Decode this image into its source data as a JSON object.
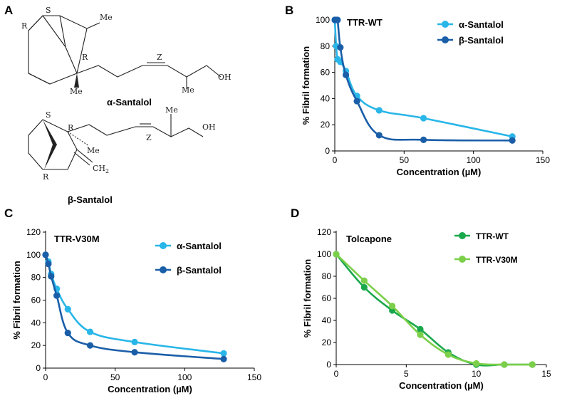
{
  "colors": {
    "alpha": "#29b6e8",
    "beta": "#1a5ea8",
    "tttrwt_tolcapone": "#1aa84c",
    "ttrv30m_tolcapone": "#7ccf4a",
    "axis": "#000000"
  },
  "panels": {
    "A": {
      "letter": "A"
    },
    "B": {
      "letter": "B"
    },
    "C": {
      "letter": "C"
    },
    "D": {
      "letter": "D"
    }
  },
  "structures": {
    "alpha": {
      "name": "α-Santalol",
      "atoms": {
        "S": "S",
        "R1": "R",
        "R2": "R",
        "Me1": "Me",
        "Me2": "Me",
        "Me3": "Me",
        "Z": "Z",
        "OH": "OH"
      }
    },
    "beta": {
      "name": "β-Santalol",
      "atoms": {
        "S": "S",
        "R1": "R",
        "R2": "R",
        "Me1": "Me",
        "Me2": "Me",
        "Z": "Z",
        "OH": "OH",
        "CH2": "CH",
        "CH2sub": "2"
      }
    }
  },
  "chart_data": [
    {
      "id": "B",
      "type": "line",
      "title": "TTR-WT",
      "xlabel": "Concentration (µM)",
      "ylabel": "% Fibril formation",
      "xlim": [
        0,
        150
      ],
      "ylim": [
        0,
        100
      ],
      "xticks": [
        "0",
        "50",
        "100",
        "150"
      ],
      "yticks": [
        "0",
        "20",
        "40",
        "60",
        "80",
        "100"
      ],
      "legend": "top-right",
      "series": [
        {
          "name": "α-Santalol",
          "color": "#29b6e8",
          "x": [
            0,
            1,
            2,
            4,
            8,
            16,
            32,
            64,
            128
          ],
          "y": [
            100,
            80,
            70,
            68,
            61,
            42,
            31,
            25,
            11
          ]
        },
        {
          "name": "β-Santalol",
          "color": "#1a5ea8",
          "x": [
            0,
            1,
            2,
            4,
            8,
            16,
            32,
            64,
            128
          ],
          "y": [
            100,
            100,
            100,
            79,
            58,
            38,
            12,
            8.5,
            8
          ]
        }
      ]
    },
    {
      "id": "C",
      "type": "line",
      "title": "TTR-V30M",
      "xlabel": "Concentration (µM)",
      "ylabel": "% Fibril formation",
      "xlim": [
        0,
        150
      ],
      "ylim": [
        0,
        120
      ],
      "xticks": [
        "0",
        "50",
        "100",
        "150"
      ],
      "yticks": [
        "0",
        "20",
        "40",
        "60",
        "80",
        "100",
        "120"
      ],
      "legend": "top-right",
      "series": [
        {
          "name": "α-Santalol",
          "color": "#29b6e8",
          "x": [
            0,
            2,
            4,
            8,
            16,
            32,
            64,
            128
          ],
          "y": [
            100,
            94,
            83,
            70,
            52,
            32,
            23,
            13
          ]
        },
        {
          "name": "β-Santalol",
          "color": "#1a5ea8",
          "x": [
            0,
            2,
            4,
            8,
            16,
            32,
            64,
            128
          ],
          "y": [
            100,
            92,
            81,
            64,
            31,
            20,
            14,
            8
          ]
        }
      ]
    },
    {
      "id": "D",
      "type": "line",
      "title": "Tolcapone",
      "xlabel": "Concentration (µM)",
      "ylabel": "% Fibril formation",
      "xlim": [
        0,
        15
      ],
      "ylim": [
        0,
        120
      ],
      "xticks": [
        "0",
        "5",
        "10",
        "15"
      ],
      "yticks": [
        "0",
        "20",
        "40",
        "60",
        "80",
        "100",
        "120"
      ],
      "legend": "top-right",
      "series": [
        {
          "name": "TTR-WT",
          "color": "#1aa84c",
          "x": [
            0,
            2,
            4,
            6,
            8,
            10,
            12,
            14
          ],
          "y": [
            100,
            70,
            49,
            32,
            11,
            0,
            0,
            0
          ]
        },
        {
          "name": "TTR-V30M",
          "color": "#7ccf4a",
          "x": [
            0,
            2,
            4,
            6,
            8,
            10,
            12,
            14
          ],
          "y": [
            100,
            76,
            53,
            27,
            9,
            1,
            0,
            0
          ]
        }
      ]
    }
  ]
}
